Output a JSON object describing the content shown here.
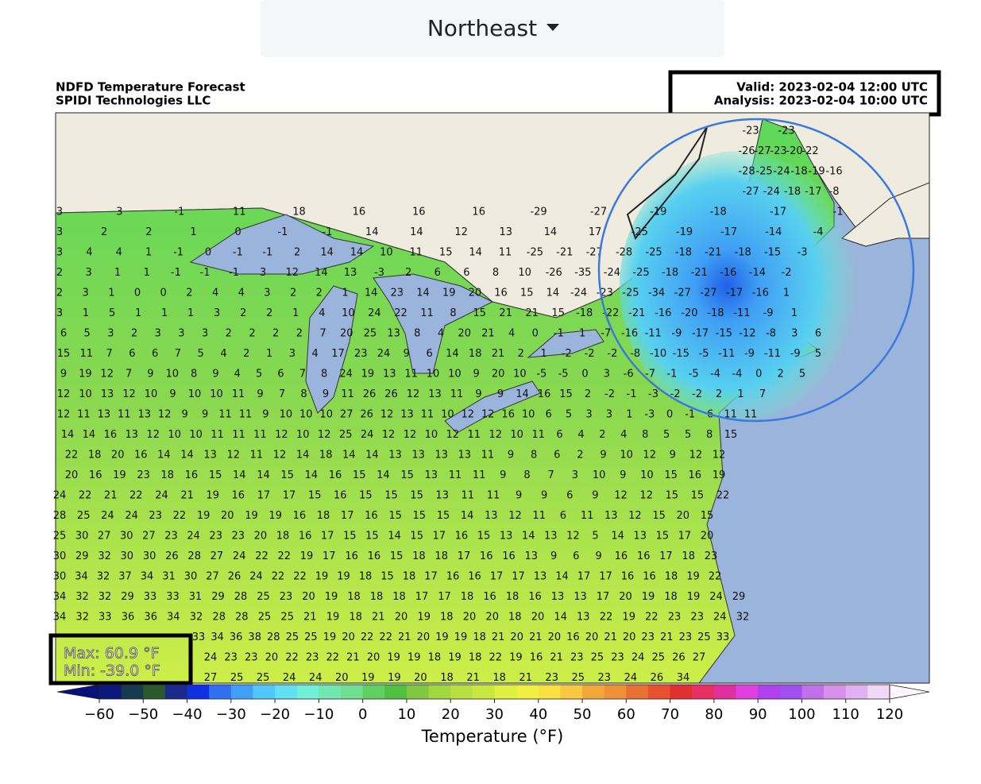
{
  "dropdown": {
    "label": "Northeast"
  },
  "map": {
    "title": "NDFD Temperature Forecast",
    "subtitle": "SPIDI Technologies LLC",
    "valid": "Valid: 2023-02-04 12:00 UTC",
    "analysis": "Analysis: 2023-02-04 10:00 UTC",
    "max": "Max: 60.9 °F",
    "min": "Min: -39.0 °F",
    "station_rows": [
      [
        -23,
        -23
      ],
      [
        -26,
        -27,
        -23,
        -20,
        -22
      ],
      [
        -28,
        -25,
        -24,
        -18,
        -19,
        -16
      ],
      [
        -27,
        -24,
        -18,
        -17,
        -8
      ],
      [
        3,
        3,
        -1,
        11,
        18,
        16,
        16,
        16,
        -29,
        -27,
        -19,
        -18,
        -17,
        -1
      ],
      [
        3,
        2,
        2,
        1,
        0,
        -1,
        -1,
        14,
        14,
        12,
        13,
        14,
        17,
        -25,
        -19,
        -17,
        -14,
        -4
      ],
      [
        3,
        4,
        4,
        1,
        -1,
        0,
        -1,
        -1,
        2,
        14,
        14,
        10,
        11,
        15,
        14,
        11,
        -25,
        -21,
        -27,
        -28,
        -25,
        -18,
        -21,
        -18,
        -15,
        -3
      ],
      [
        2,
        3,
        1,
        1,
        -1,
        -1,
        -1,
        3,
        12,
        14,
        13,
        -3,
        2,
        6,
        6,
        8,
        10,
        -26,
        -35,
        -24,
        -25,
        -18,
        -21,
        -16,
        -14,
        -2
      ],
      [
        2,
        3,
        1,
        0,
        0,
        2,
        4,
        4,
        3,
        2,
        2,
        1,
        14,
        23,
        14,
        19,
        20,
        16,
        15,
        14,
        -24,
        -23,
        -25,
        -34,
        -27,
        -27,
        -17,
        -16,
        1
      ],
      [
        3,
        1,
        5,
        1,
        1,
        1,
        3,
        2,
        2,
        1,
        4,
        10,
        24,
        22,
        11,
        8,
        15,
        21,
        21,
        15,
        -18,
        -22,
        -21,
        -16,
        -20,
        -18,
        -11,
        -9,
        1
      ],
      [
        6,
        5,
        3,
        2,
        3,
        3,
        3,
        2,
        2,
        2,
        2,
        7,
        20,
        25,
        13,
        8,
        4,
        20,
        21,
        4,
        0,
        -1,
        1,
        -7,
        -16,
        -11,
        -9,
        -17,
        -15,
        -12,
        -8,
        3,
        6
      ],
      [
        15,
        11,
        7,
        6,
        6,
        7,
        5,
        4,
        2,
        1,
        3,
        4,
        17,
        23,
        24,
        9,
        6,
        14,
        18,
        21,
        2,
        1,
        -2,
        -2,
        -2,
        -8,
        -10,
        -15,
        -5,
        -11,
        -9,
        -11,
        -9,
        5
      ],
      [
        9,
        19,
        12,
        7,
        9,
        10,
        8,
        9,
        4,
        5,
        6,
        7,
        8,
        24,
        19,
        13,
        11,
        10,
        10,
        9,
        20,
        10,
        -5,
        -5,
        0,
        3,
        -6,
        -7,
        -1,
        -5,
        -4,
        -4,
        0,
        2,
        5
      ],
      [
        12,
        10,
        13,
        12,
        10,
        9,
        10,
        10,
        11,
        9,
        7,
        8,
        9,
        11,
        26,
        26,
        12,
        13,
        11,
        9,
        9,
        14,
        16,
        15,
        2,
        -2,
        -1,
        -3,
        -2,
        -2,
        2,
        1,
        7
      ],
      [
        12,
        11,
        13,
        11,
        13,
        12,
        9,
        9,
        11,
        11,
        9,
        10,
        10,
        10,
        27,
        26,
        12,
        13,
        11,
        10,
        12,
        12,
        16,
        10,
        6,
        5,
        3,
        3,
        1,
        -3,
        0,
        -1,
        6,
        11,
        11
      ],
      [
        14,
        14,
        16,
        13,
        12,
        10,
        10,
        11,
        11,
        11,
        12,
        10,
        12,
        25,
        24,
        12,
        12,
        10,
        12,
        11,
        12,
        10,
        11,
        6,
        4,
        2,
        4,
        8,
        5,
        5,
        8,
        15
      ],
      [
        22,
        18,
        20,
        16,
        14,
        14,
        13,
        12,
        11,
        12,
        14,
        18,
        14,
        14,
        13,
        13,
        13,
        13,
        11,
        9,
        8,
        6,
        2,
        9,
        10,
        12,
        9,
        12,
        12
      ],
      [
        20,
        16,
        19,
        23,
        18,
        16,
        15,
        14,
        14,
        15,
        14,
        16,
        15,
        14,
        15,
        13,
        11,
        11,
        9,
        8,
        7,
        3,
        10,
        9,
        10,
        15,
        16,
        19
      ],
      [
        24,
        22,
        21,
        22,
        24,
        21,
        19,
        16,
        17,
        17,
        15,
        16,
        15,
        15,
        15,
        13,
        11,
        11,
        9,
        9,
        6,
        9,
        12,
        12,
        15,
        15,
        22
      ],
      [
        28,
        25,
        24,
        24,
        23,
        22,
        19,
        20,
        19,
        19,
        16,
        18,
        17,
        16,
        15,
        15,
        15,
        14,
        13,
        12,
        11,
        6,
        11,
        13,
        12,
        15,
        20,
        15
      ],
      [
        25,
        30,
        27,
        30,
        27,
        23,
        24,
        23,
        23,
        20,
        18,
        16,
        17,
        15,
        15,
        14,
        15,
        17,
        16,
        15,
        13,
        14,
        13,
        12,
        5,
        14,
        13,
        15,
        17,
        20
      ],
      [
        30,
        29,
        32,
        30,
        30,
        26,
        28,
        27,
        24,
        22,
        22,
        19,
        17,
        16,
        16,
        15,
        18,
        18,
        17,
        16,
        16,
        13,
        9,
        6,
        9,
        16,
        16,
        17,
        18,
        23
      ],
      [
        30,
        34,
        32,
        37,
        34,
        31,
        30,
        27,
        26,
        24,
        22,
        22,
        19,
        19,
        18,
        15,
        18,
        17,
        16,
        16,
        17,
        17,
        13,
        14,
        17,
        17,
        16,
        16,
        18,
        19,
        22
      ],
      [
        34,
        32,
        32,
        29,
        33,
        33,
        31,
        29,
        28,
        25,
        23,
        20,
        19,
        18,
        18,
        18,
        17,
        17,
        18,
        16,
        18,
        16,
        13,
        13,
        17,
        20,
        19,
        18,
        19,
        24,
        29
      ],
      [
        34,
        32,
        33,
        36,
        36,
        34,
        32,
        28,
        28,
        25,
        25,
        21,
        19,
        18,
        21,
        20,
        19,
        18,
        20,
        20,
        18,
        20,
        14,
        13,
        22,
        19,
        22,
        23,
        23,
        24,
        32
      ],
      [
        33,
        34,
        36,
        38,
        28,
        25,
        25,
        19,
        20,
        22,
        22,
        21,
        20,
        19,
        19,
        18,
        21,
        20,
        21,
        20,
        16,
        20,
        21,
        20,
        23,
        21,
        23,
        25,
        33
      ],
      [
        24,
        23,
        23,
        20,
        22,
        23,
        22,
        21,
        20,
        19,
        19,
        18,
        19,
        18,
        22,
        19,
        16,
        21,
        23,
        25,
        23,
        24,
        25,
        26,
        27
      ],
      [
        27,
        25,
        25,
        24,
        24,
        20,
        19,
        19,
        20,
        18,
        21,
        18,
        21,
        23,
        25,
        23,
        24,
        26,
        34
      ]
    ]
  },
  "colorbar": {
    "label": "Temperature (°F)",
    "ticks": [
      {
        "value": -60,
        "label": "−60"
      },
      {
        "value": -50,
        "label": "−50"
      },
      {
        "value": -40,
        "label": "−40"
      },
      {
        "value": -30,
        "label": "−30"
      },
      {
        "value": -20,
        "label": "−20"
      },
      {
        "value": -10,
        "label": "−10"
      },
      0,
      10,
      20,
      30,
      40,
      50,
      60,
      70,
      80,
      90,
      100,
      110,
      120
    ],
    "under_color": "#08107a",
    "over_color": "#fdf6fd",
    "colors": [
      "#0b1a7a",
      "#153b4f",
      "#2a5a2a",
      "#1a2a8a",
      "#1030e0",
      "#3070f0",
      "#40a0f8",
      "#50c8f8",
      "#60e0f0",
      "#70f0d8",
      "#70e8b0",
      "#70e090",
      "#60d060",
      "#50c040",
      "#80c840",
      "#a0d840",
      "#b8e040",
      "#c8e840",
      "#e0f040",
      "#f0f040",
      "#f8e040",
      "#f8c840",
      "#f0a838",
      "#f09038",
      "#e87030",
      "#e85030",
      "#e03030",
      "#e83060",
      "#e030a0",
      "#e040e0",
      "#b040f0",
      "#a050f0",
      "#c070e8",
      "#d890e8",
      "#e0b0f0",
      "#f0d8f8"
    ]
  }
}
